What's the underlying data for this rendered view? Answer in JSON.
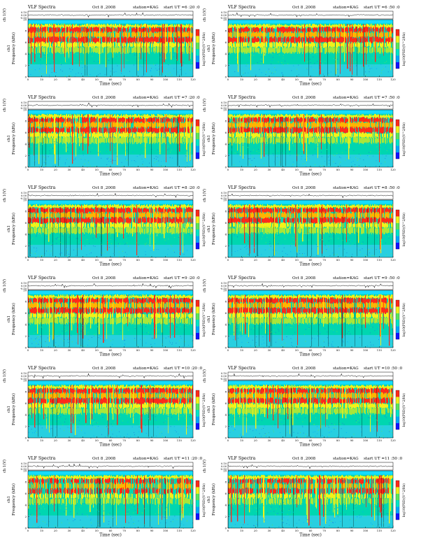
{
  "figure": {
    "common": {
      "title": "VLF Spectra",
      "date": "Oct 8 ,2008",
      "station": "station=KAG",
      "start_prefix": "start  UT =",
      "channel_label": "ch 1(V)",
      "freq_label_a": "ch1",
      "freq_label_b": "Frequency  (kHz)",
      "time_label": "Time  (sec)",
      "colorbar_label": "log10(PSD)(V^2/Hz)",
      "volt_ticks": [
        "0.10",
        "0.00",
        "-0.10"
      ],
      "freq_ticks": [
        "0",
        "2",
        "4",
        "6",
        "8",
        "10"
      ],
      "time_ticks": [
        "0",
        "10",
        "20",
        "30",
        "40",
        "50",
        "60",
        "70",
        "80",
        "90",
        "100",
        "110",
        "120"
      ]
    },
    "panels": [
      {
        "start": "6 :20 :0"
      },
      {
        "start": "6 :50 :0"
      },
      {
        "start": "7 :20 :0"
      },
      {
        "start": "7 :50 :0"
      },
      {
        "start": "8 :20 :0"
      },
      {
        "start": "8 :50 :0"
      },
      {
        "start": "9 :20 :0"
      },
      {
        "start": "9 :50 :0"
      },
      {
        "start": "10 :20 :0"
      },
      {
        "start": "10 :50 :0"
      },
      {
        "start": "11 :20 :0"
      },
      {
        "start": "11 :50 :0"
      }
    ]
  },
  "chart_data": {
    "type": "heatmap",
    "title": "VLF Spectra",
    "xlabel": "Time  (sec)",
    "ylabel": "Frequency  (kHz)",
    "xlim": [
      0,
      120
    ],
    "ylim": [
      0,
      10
    ],
    "colorbar": "log10(PSD)(V^2/Hz)",
    "colorscale": [
      "#1414ff",
      "#00a8ff",
      "#00e6c8",
      "#5ce65c",
      "#f2f21a",
      "#ff2a1a"
    ],
    "voltage_ylim": [
      -0.1,
      0.1
    ]
  }
}
